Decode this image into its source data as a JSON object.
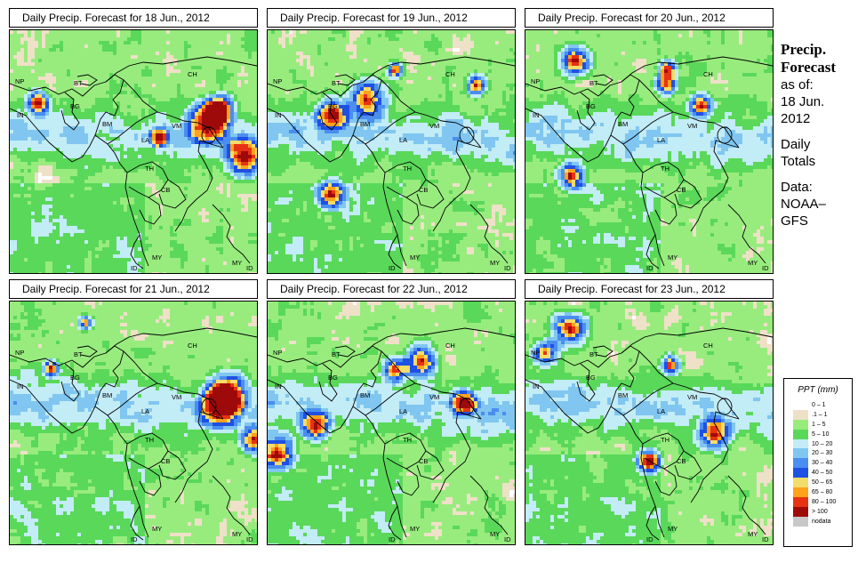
{
  "panels": [
    {
      "title": "Daily Precip. Forecast for  18 Jun., 2012",
      "seed": 18,
      "labels": [
        "NP",
        "BT",
        "BG",
        "IN",
        "BM",
        "CH",
        "VM",
        "LA",
        "TH",
        "CB",
        "MY",
        "ID",
        "MY",
        "ID"
      ]
    },
    {
      "title": "Daily Precip. Forecast for  19 Jun., 2012",
      "seed": 19,
      "labels": [
        "NP",
        "BT",
        "BG",
        "IN",
        "BM",
        "CH",
        "VM",
        "LA",
        "TH",
        "CB",
        "MY",
        "ID",
        "MY",
        "ID"
      ]
    },
    {
      "title": "Daily Precip. Forecast for  20 Jun., 2012",
      "seed": 20,
      "labels": [
        "NP",
        "BT",
        "BG",
        "IN",
        "BM",
        "CH",
        "VM",
        "LA",
        "TH",
        "CB",
        "MY",
        "ID",
        "MY",
        "ID"
      ]
    },
    {
      "title": "Daily Precip. Forecast for  21 Jun., 2012",
      "seed": 21,
      "labels": [
        "NP",
        "BT",
        "BG",
        "IN",
        "BM",
        "CH",
        "VM",
        "LA",
        "TH",
        "CB",
        "MY",
        "ID",
        "MY",
        "ID"
      ]
    },
    {
      "title": "Daily Precip. Forecast for  22 Jun., 2012",
      "seed": 22,
      "labels": [
        "NP",
        "BT",
        "BG",
        "IN",
        "BM",
        "CH",
        "VM",
        "LA",
        "TH",
        "CB",
        "MY",
        "ID",
        "MY",
        "ID"
      ]
    },
    {
      "title": "Daily Precip. Forecast for  23 Jun., 2012",
      "seed": 23,
      "labels": [
        "NP",
        "BT",
        "BG",
        "IN",
        "BM",
        "CH",
        "VM",
        "LA",
        "TH",
        "CB",
        "MY",
        "ID",
        "MY",
        "ID"
      ]
    }
  ],
  "sidebar": {
    "heading1": "Precip.",
    "heading2": "Forecast",
    "asof": "as of:",
    "date1": "18 Jun.",
    "date2": "2012",
    "daily1": "Daily",
    "daily2": "Totals",
    "data1": "Data:",
    "data2": "NOAA–",
    "data3": "GFS"
  },
  "legend": {
    "title": "PPT (mm)",
    "items": [
      {
        "label": "0 – 1",
        "color": "#ffffff"
      },
      {
        "label": ".1 – 1",
        "color": "#efe0c8"
      },
      {
        "label": "1 – 5",
        "color": "#98ec7e"
      },
      {
        "label": "5 – 10",
        "color": "#5ad85a"
      },
      {
        "label": "10 – 20",
        "color": "#c2ecf6"
      },
      {
        "label": "20 – 30",
        "color": "#80c6f0"
      },
      {
        "label": "30 – 40",
        "color": "#4a8ef0"
      },
      {
        "label": "40 – 50",
        "color": "#1e50e4"
      },
      {
        "label": "50 – 65",
        "color": "#f4dc6a"
      },
      {
        "label": "65 – 80",
        "color": "#ffa21c"
      },
      {
        "label": "80 – 100",
        "color": "#e83214"
      },
      {
        "label": "> 100",
        "color": "#9e0a0a"
      },
      {
        "label": "nodata",
        "color": "#c8c8c8"
      }
    ]
  }
}
